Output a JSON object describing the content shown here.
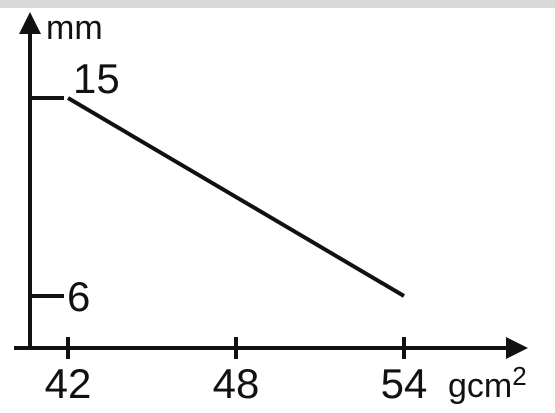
{
  "chart_data": {
    "type": "line",
    "title": "",
    "xlabel": "gcm",
    "xlabel_superscript": "2",
    "ylabel": "mm",
    "x_ticks": [
      {
        "value": 42,
        "label": "42"
      },
      {
        "value": 48,
        "label": "48"
      },
      {
        "value": 54,
        "label": "54"
      }
    ],
    "y_ticks": [
      {
        "value": 6,
        "label": "6"
      },
      {
        "value": 15,
        "label": "15"
      }
    ],
    "series": [
      {
        "points": [
          {
            "x": 42,
            "y": 15
          },
          {
            "x": 54,
            "y": 6
          }
        ]
      }
    ],
    "grid": false,
    "legend": "none",
    "colors": {
      "axis": "#111111",
      "line": "#111111",
      "background": "#ffffff"
    }
  }
}
